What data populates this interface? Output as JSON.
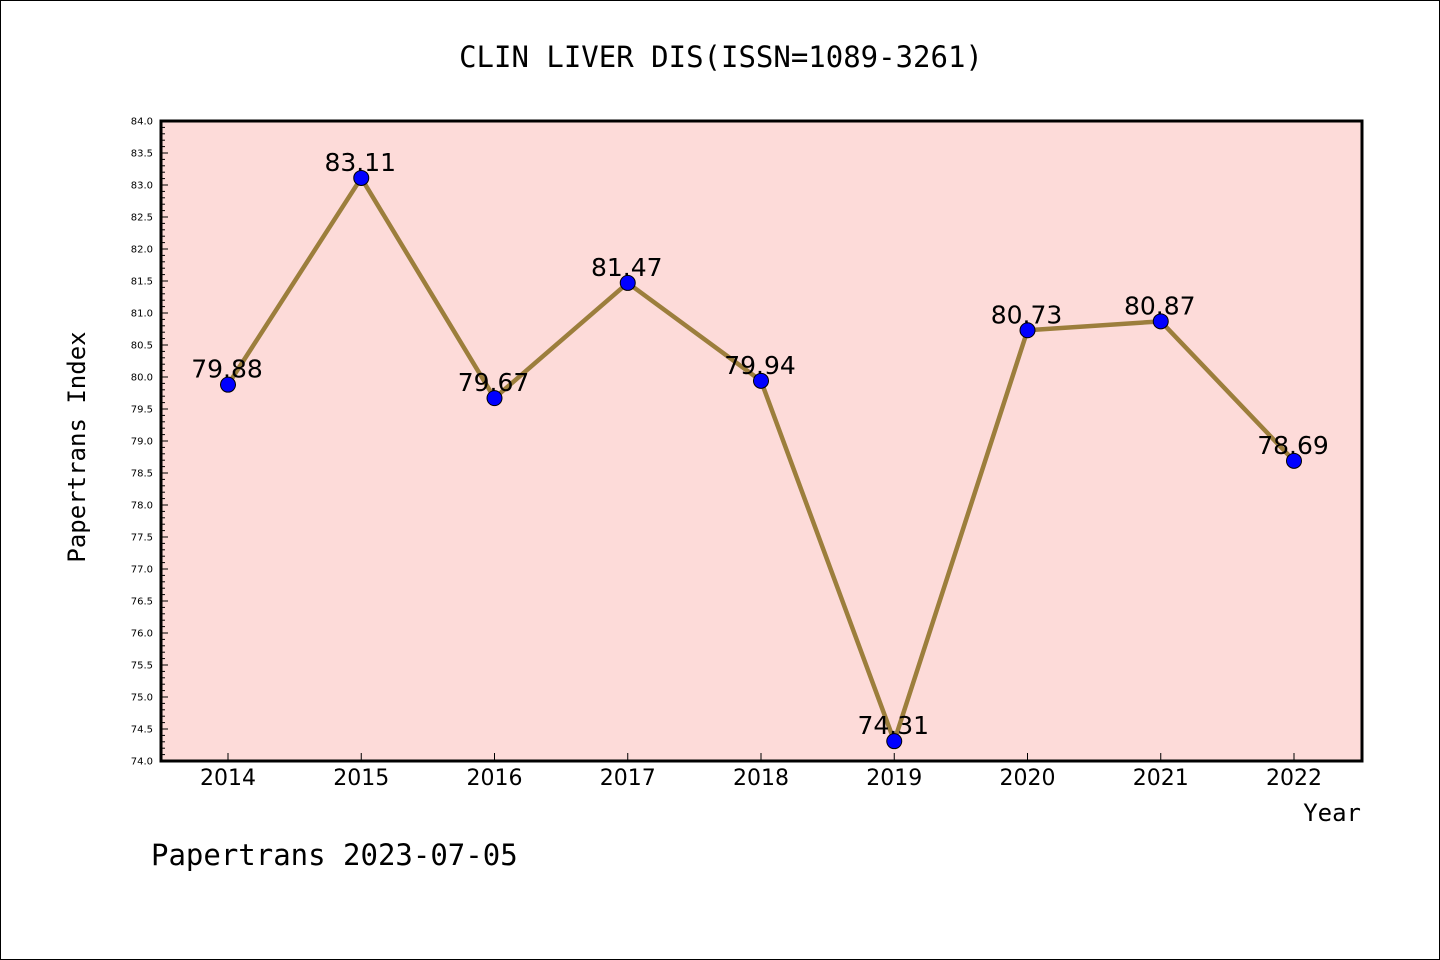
{
  "chart_data": {
    "type": "line",
    "title": "CLIN LIVER DIS(ISSN=1089-3261)",
    "xlabel": "Year",
    "ylabel": "Papertrans Index",
    "categories": [
      "2014",
      "2015",
      "2016",
      "2017",
      "2018",
      "2019",
      "2020",
      "2021",
      "2022"
    ],
    "values": [
      79.88,
      83.11,
      79.67,
      81.47,
      79.94,
      74.31,
      80.73,
      80.87,
      78.69
    ],
    "data_labels": [
      "79.88",
      "83.11",
      "79.67",
      "81.47",
      "79.94",
      "74.31",
      "80.73",
      "80.87",
      "78.69"
    ],
    "ylim": [
      74.0,
      84.0
    ],
    "ytick_labels": [
      "74.0",
      "74.5",
      "75.0",
      "75.5",
      "76.0",
      "76.5",
      "77.0",
      "77.5",
      "78.0",
      "78.5",
      "79.0",
      "79.5",
      "80.0",
      "80.5",
      "81.0",
      "81.5",
      "82.0",
      "82.5",
      "83.0",
      "83.5",
      "84.0"
    ],
    "grid": false,
    "legend": "none",
    "colors": {
      "plot_background": "#fddbd9",
      "line": "#9c7e3c",
      "marker": "#0000ff",
      "axes": "#000000"
    }
  },
  "footer": {
    "text": "Papertrans 2023-07-05"
  }
}
